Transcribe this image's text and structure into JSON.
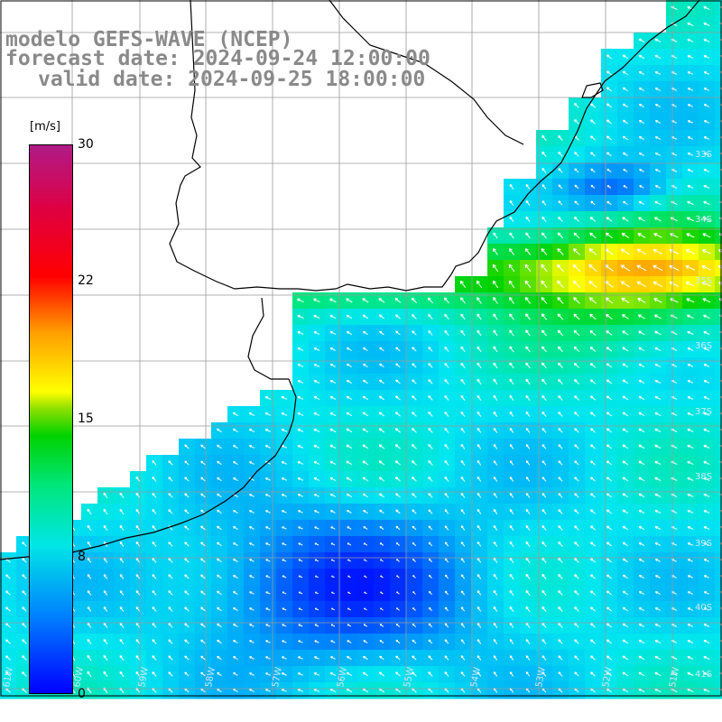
{
  "header": {
    "line1": "modelo GEFS-WAVE (NCEP)",
    "line2": "forecast date: 2024-09-24 12:00:00",
    "line3": "valid date: 2024-09-25 18:00:00"
  },
  "colorbar": {
    "unit": "[m/s]",
    "labels": [
      "30",
      "22",
      "15",
      "8",
      "0"
    ],
    "min": 0,
    "max": 30,
    "colors": [
      "#0000ff",
      "#0080ff",
      "#00e6e6",
      "#00e67a",
      "#00d200",
      "#ffff00",
      "#ff9c00",
      "#ff0000",
      "#b01a88"
    ]
  },
  "map": {
    "land_color": "#ffffff",
    "grid_color": "#9a9a9a",
    "coast_color": "#000000",
    "arrow_color": "#ffffff",
    "lat_labels": [
      "33S",
      "34S",
      "35S",
      "36S",
      "37S",
      "38S",
      "39S",
      "40S",
      "41S"
    ],
    "lon_labels": [
      "61W",
      "60W",
      "59W",
      "58W",
      "57W",
      "56W",
      "55W",
      "54W",
      "53W",
      "52W",
      "51W"
    ]
  }
}
